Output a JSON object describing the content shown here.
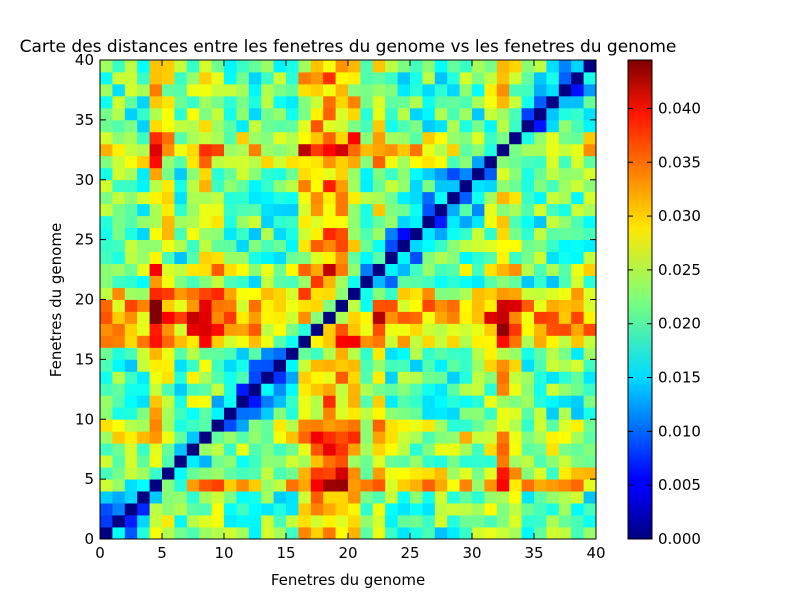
{
  "chart_data": {
    "type": "heatmap",
    "title": "Carte des distances entre les fenetres du genome vs les fenetres du genome",
    "xlabel": "Fenetres du genome",
    "ylabel": "Fenetres du genome",
    "xlim": [
      0,
      40
    ],
    "ylim": [
      0,
      40
    ],
    "x_ticks": [
      "0",
      "5",
      "10",
      "15",
      "20",
      "25",
      "30",
      "35",
      "40"
    ],
    "y_ticks": [
      "0",
      "5",
      "10",
      "15",
      "20",
      "25",
      "30",
      "35",
      "40"
    ],
    "colorbar": {
      "colormap": "jet",
      "range": [
        0.0,
        0.0445
      ],
      "tick_values": [
        0.0,
        0.005,
        0.01,
        0.015,
        0.02,
        0.025,
        0.03,
        0.035,
        0.04
      ],
      "tick_labels": [
        "0.000",
        "0.005",
        "0.010",
        "0.015",
        "0.020",
        "0.025",
        "0.030",
        "0.035",
        "0.040"
      ]
    },
    "grid": false,
    "origin": "lower",
    "n_rows": 40,
    "n_cols": 40,
    "diagonal_value": 0.0,
    "baseline_value": 0.02,
    "row_profiles": {
      "4": 0.038,
      "5": 0.03,
      "7": 0.028,
      "8": 0.031,
      "9": 0.028,
      "16": 0.036,
      "17": 0.041,
      "18": 0.044,
      "19": 0.04,
      "20": 0.036,
      "22": 0.03,
      "31": 0.028,
      "32": 0.036,
      "33": 0.03
    }
  }
}
